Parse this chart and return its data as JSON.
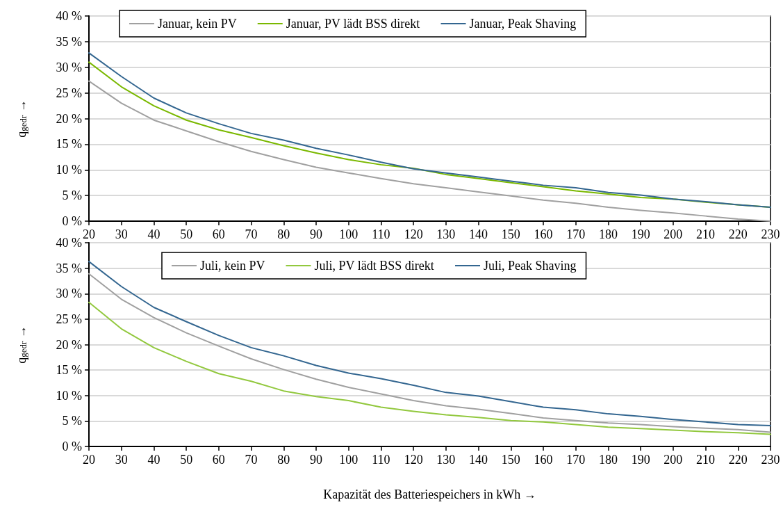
{
  "chart_data": [
    {
      "type": "line",
      "ylabel": "q$_{gedr}$ →",
      "x": [
        20,
        30,
        40,
        50,
        60,
        70,
        80,
        90,
        100,
        110,
        120,
        130,
        140,
        150,
        160,
        170,
        180,
        190,
        200,
        210,
        220,
        230
      ],
      "xlim": [
        20,
        230
      ],
      "xticks": [
        20,
        30,
        40,
        50,
        60,
        70,
        80,
        90,
        100,
        110,
        120,
        130,
        140,
        150,
        160,
        170,
        180,
        190,
        200,
        210,
        220,
        230
      ],
      "ylim": [
        0,
        40
      ],
      "yticks": [
        {
          "value": 0,
          "label": "0 %"
        },
        {
          "value": 5,
          "label": "5 %"
        },
        {
          "value": 10,
          "label": "10 %"
        },
        {
          "value": 15,
          "label": "15 %"
        },
        {
          "value": 20,
          "label": "20 %"
        },
        {
          "value": 25,
          "label": "25 %"
        },
        {
          "value": 30,
          "label": "30 %"
        },
        {
          "value": 35,
          "label": "35 %"
        },
        {
          "value": 40,
          "label": "40 %"
        }
      ],
      "grid": "y",
      "legend": "top",
      "marker": "none",
      "line_style": "solid",
      "series": [
        {
          "name": "Januar, kein PV",
          "color": "#a0a0a0",
          "values": [
            27.3,
            23.0,
            19.7,
            17.6,
            15.5,
            13.6,
            12.0,
            10.5,
            9.4,
            8.3,
            7.3,
            6.5,
            5.7,
            4.9,
            4.1,
            3.5,
            2.7,
            2.1,
            1.6,
            1.0,
            0.4,
            0
          ]
        },
        {
          "name": "Januar, PV lädt BSS direkt",
          "color": "#7ab800",
          "values": [
            31.0,
            26.2,
            22.5,
            19.7,
            17.8,
            16.3,
            14.7,
            13.3,
            12.0,
            11.0,
            10.3,
            9.1,
            8.3,
            7.5,
            6.7,
            5.9,
            5.3,
            4.6,
            4.3,
            3.7,
            3.2,
            2.7
          ]
        },
        {
          "name": "Januar, Peak Shaving",
          "color": "#336690",
          "values": [
            32.8,
            28.2,
            24.0,
            21.1,
            19.0,
            17.1,
            15.8,
            14.2,
            12.9,
            11.5,
            10.2,
            9.4,
            8.6,
            7.8,
            7.0,
            6.5,
            5.6,
            5.1,
            4.3,
            3.8,
            3.2,
            2.7
          ]
        }
      ]
    },
    {
      "type": "line",
      "ylabel": "q$_{gedr}$ →",
      "xlabel": "Kapazität des Batteriespeichers in kWh →",
      "x": [
        20,
        30,
        40,
        50,
        60,
        70,
        80,
        90,
        100,
        110,
        120,
        130,
        140,
        150,
        160,
        170,
        180,
        190,
        200,
        210,
        220,
        230
      ],
      "xlim": [
        20,
        230
      ],
      "xticks": [
        20,
        30,
        40,
        50,
        60,
        70,
        80,
        90,
        100,
        110,
        120,
        130,
        140,
        150,
        160,
        170,
        180,
        190,
        200,
        210,
        220,
        230
      ],
      "ylim": [
        0,
        40
      ],
      "yticks": [
        {
          "value": 0,
          "label": "0 %"
        },
        {
          "value": 5,
          "label": "5 %"
        },
        {
          "value": 10,
          "label": "10 %"
        },
        {
          "value": 15,
          "label": "15 %"
        },
        {
          "value": 20,
          "label": "20 %"
        },
        {
          "value": 25,
          "label": "25 %"
        },
        {
          "value": 30,
          "label": "30 %"
        },
        {
          "value": 35,
          "label": "35 %"
        },
        {
          "value": 40,
          "label": "40 %"
        }
      ],
      "grid": "y",
      "legend": "top",
      "marker": "none",
      "line_style": "solid",
      "series": [
        {
          "name": "Juli, kein PV",
          "color": "#a0a0a0",
          "values": [
            33.9,
            28.9,
            25.3,
            22.3,
            19.7,
            17.2,
            15.1,
            13.2,
            11.6,
            10.3,
            9.0,
            8.0,
            7.3,
            6.5,
            5.6,
            5.1,
            4.6,
            4.3,
            3.9,
            3.6,
            3.3,
            2.8
          ]
        },
        {
          "name": "Juli, PV lädt BSS direkt",
          "color": "#92c83e",
          "values": [
            28.3,
            23.1,
            19.4,
            16.7,
            14.3,
            12.8,
            10.9,
            9.8,
            9.0,
            7.7,
            6.9,
            6.2,
            5.7,
            5.1,
            4.8,
            4.3,
            3.8,
            3.5,
            3.2,
            2.9,
            2.7,
            2.4
          ]
        },
        {
          "name": "Juli, Peak Shaving",
          "color": "#336690",
          "values": [
            36.3,
            31.4,
            27.3,
            24.5,
            21.8,
            19.4,
            17.8,
            15.9,
            14.4,
            13.3,
            12.0,
            10.6,
            9.9,
            8.8,
            7.7,
            7.2,
            6.4,
            5.9,
            5.3,
            4.8,
            4.3,
            4.1
          ]
        }
      ]
    }
  ]
}
